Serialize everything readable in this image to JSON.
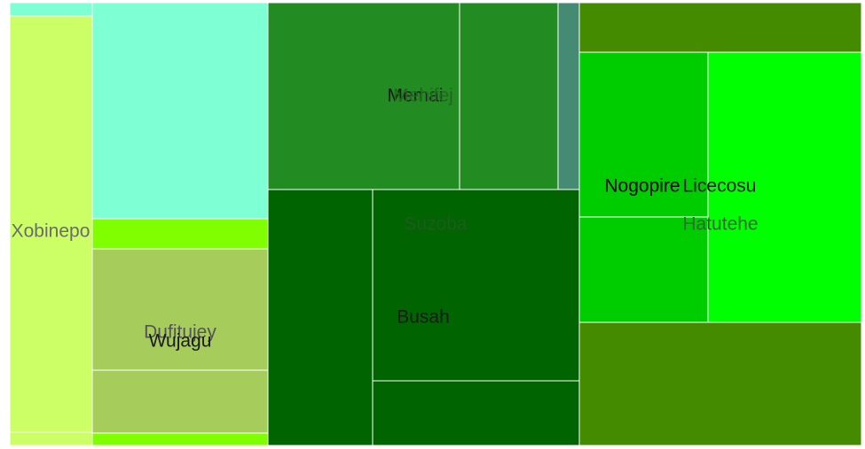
{
  "chart_data": {
    "type": "treemap",
    "title": "",
    "groups": [
      {
        "name": "Xobinepo",
        "color": "#7fffd4",
        "label_color": "#6b6b6b",
        "children": [
          {
            "name": "",
            "value": 7.2,
            "color": "#7fffd4"
          },
          {
            "name": "",
            "value": 197,
            "color": "#ccff66"
          },
          {
            "name": "",
            "value": 7.2,
            "color": "#ccff66"
          }
        ]
      },
      {
        "name": "Dufitujey",
        "color": "#7fff00",
        "label_color": "#555555",
        "children": [
          {
            "name": "",
            "value": 240,
            "color": "#7fffd4"
          },
          {
            "name": "",
            "value": 35,
            "color": "#7fff00"
          },
          {
            "name": "Wujagu",
            "value": 137,
            "color": "#a6cc5c",
            "label_color": "#1a1a1a"
          },
          {
            "name": "",
            "value": 70,
            "color": "#a6cc5c"
          },
          {
            "name": "",
            "value": 14,
            "color": "#7fff00"
          }
        ]
      },
      {
        "name": "Memai",
        "color": "#228b22",
        "label_color": "#1a1a1a",
        "children": [
          {
            "name": "Mehifej",
            "value": 270,
            "color": "#228b22",
            "label_color": "#226622"
          },
          {
            "name": "",
            "value": 139,
            "color": "#228b22"
          },
          {
            "name": "",
            "value": 29,
            "color": "#458b74"
          }
        ]
      },
      {
        "name": "Suzoba",
        "color": "#006400",
        "label_color": "#1f5a1f",
        "children": [
          {
            "name": "",
            "value": 349,
            "color": "#006400"
          },
          {
            "name": "Busah",
            "value": 578,
            "color": "#006400",
            "label_color": "#1a1a1a"
          },
          {
            "name": "",
            "value": 278,
            "color": "#006400"
          }
        ]
      },
      {
        "name": "Hatutehe",
        "color": "#458b00",
        "label_color": "#2d6b2d",
        "children": [
          {
            "name": "",
            "value": 108,
            "color": "#458b00"
          },
          {
            "name": "Nogopire",
            "value": 187,
            "color": "#00cd00",
            "label_color": "#000000"
          },
          {
            "name": "",
            "value": 153,
            "color": "#00cd00"
          },
          {
            "name": "Licecosu",
            "value": 554,
            "color": "#00ff00",
            "label_color": "#1a1a1a"
          },
          {
            "name": "",
            "value": 422,
            "color": "#458b00"
          }
        ]
      }
    ]
  }
}
